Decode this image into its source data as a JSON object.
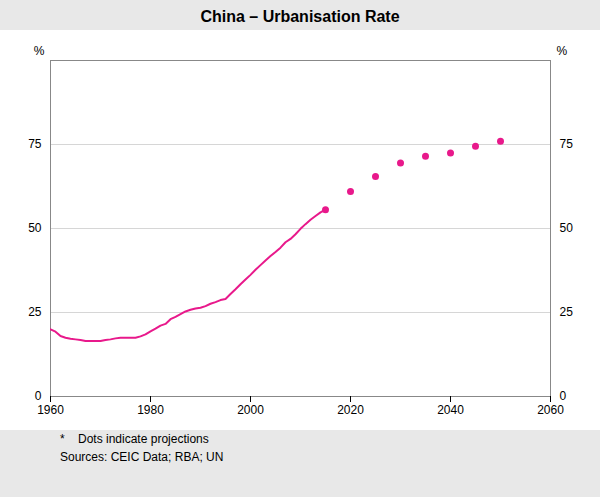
{
  "chart_data": {
    "type": "line",
    "title": "China – Urbanisation Rate",
    "ylabel": "%",
    "y2label": "%",
    "annotations": [
      "*    Dots indicate projections",
      "Sources: CEIC Data; RBA; UN"
    ],
    "xlim": [
      1960,
      2060
    ],
    "xticks": [
      1960,
      1980,
      2000,
      2020,
      2040,
      2060
    ],
    "ylim": [
      0,
      100
    ],
    "yticks": [
      0,
      25,
      50,
      75
    ],
    "y2lim": [
      0,
      100
    ],
    "y2ticks": [
      0,
      25,
      50,
      75
    ],
    "grid": "y",
    "series": [
      {
        "type": "line",
        "color": "#E8198B",
        "x": [
          1960,
          1961,
          1962,
          1963,
          1964,
          1965,
          1966,
          1967,
          1968,
          1969,
          1970,
          1971,
          1972,
          1973,
          1974,
          1975,
          1976,
          1977,
          1978,
          1979,
          1980,
          1981,
          1982,
          1983,
          1984,
          1985,
          1986,
          1987,
          1988,
          1989,
          1990,
          1991,
          1992,
          1993,
          1994,
          1995,
          1996,
          1997,
          1998,
          1999,
          2000,
          2001,
          2002,
          2003,
          2004,
          2005,
          2006,
          2007,
          2008,
          2009,
          2010,
          2011,
          2012,
          2013,
          2014,
          2015
        ],
        "values": [
          20.0,
          19.3,
          18.0,
          17.5,
          17.2,
          17.0,
          16.8,
          16.5,
          16.5,
          16.5,
          16.5,
          16.8,
          17.0,
          17.3,
          17.5,
          17.5,
          17.5,
          17.5,
          17.9,
          18.5,
          19.4,
          20.2,
          21.1,
          21.6,
          23.0,
          23.7,
          24.5,
          25.3,
          25.8,
          26.2,
          26.4,
          26.9,
          27.6,
          28.1,
          28.7,
          29.0,
          30.5,
          31.9,
          33.4,
          34.8,
          36.2,
          37.7,
          39.1,
          40.5,
          41.8,
          43.0,
          44.3,
          45.9,
          46.9,
          48.3,
          49.9,
          51.3,
          52.6,
          53.7,
          54.8,
          55.6
        ]
      },
      {
        "type": "scatter",
        "color": "#E8198B",
        "marker": "circle",
        "x": [
          2015,
          2020,
          2025,
          2030,
          2035,
          2040,
          2045,
          2050
        ],
        "values": [
          55.6,
          61.0,
          65.5,
          69.5,
          71.5,
          72.5,
          74.5,
          76.0
        ]
      }
    ]
  }
}
